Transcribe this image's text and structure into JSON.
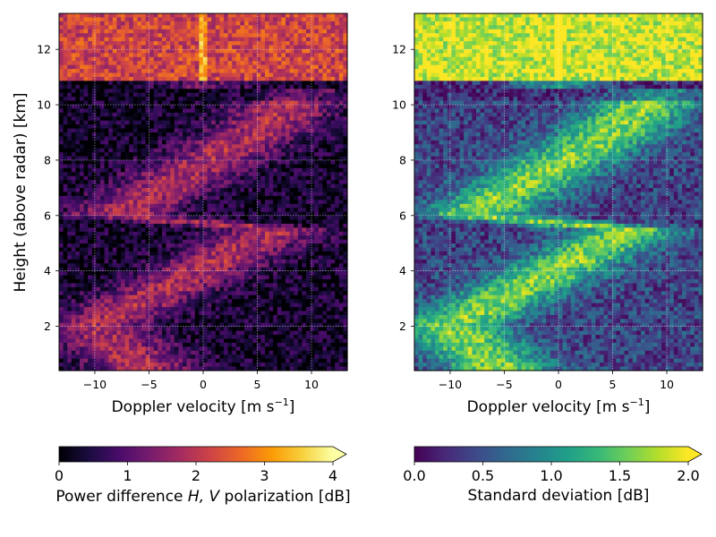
{
  "chart_data": [
    {
      "type": "heatmap",
      "xlabel": "Doppler velocity [m s⁻¹]",
      "ylabel": "Height (above radar) [km]",
      "xlim": [
        -13.3,
        13.3
      ],
      "ylim": [
        0.4,
        13.3
      ],
      "xticks": [
        -10,
        -5,
        0,
        5,
        10
      ],
      "yticks": [
        2,
        4,
        6,
        8,
        10,
        12
      ],
      "grid": true,
      "colormap": "inferno",
      "colorbar": {
        "label": "Power difference H, V polarization [dB]",
        "range": [
          0,
          4
        ],
        "ticks": [
          "0",
          "1",
          "2",
          "3",
          "4"
        ],
        "extend": "max",
        "placement": "bottom"
      }
    },
    {
      "type": "heatmap",
      "xlabel": "Doppler velocity [m s⁻¹]",
      "ylabel": "",
      "xlim": [
        -13.3,
        13.3
      ],
      "ylim": [
        0.4,
        13.3
      ],
      "xticks": [
        -10,
        -5,
        0,
        5,
        10
      ],
      "yticks": [
        2,
        4,
        6,
        8,
        10,
        12
      ],
      "grid": true,
      "colormap": "viridis",
      "colorbar": {
        "label": "Standard deviation [dB]",
        "range": [
          0,
          2
        ],
        "ticks": [
          "0.0",
          "0.5",
          "1.0",
          "1.5",
          "2.0"
        ],
        "extend": "max",
        "placement": "bottom"
      }
    }
  ],
  "labels": {
    "ylabel_main": "Height (above radar) [km]",
    "xlabel_prefix": "Doppler velocity [m s",
    "xlabel_sup": "−1",
    "xlabel_suffix": "]",
    "cb1_prefix": "Power difference ",
    "cb1_italic": "H, V",
    "cb1_suffix": " polarization [dB]",
    "cb2_label": "Standard deviation [dB]"
  },
  "colors": {
    "inferno": [
      "#000004",
      "#1b0c41",
      "#4a0c6b",
      "#781c6d",
      "#a52c60",
      "#cf4446",
      "#ed6925",
      "#fb9b06",
      "#f7d13d",
      "#fcffa4"
    ],
    "viridis": [
      "#440154",
      "#482878",
      "#3e4989",
      "#31688e",
      "#26828e",
      "#1f9e89",
      "#35b779",
      "#6ece58",
      "#b5de2b",
      "#fde725"
    ]
  }
}
